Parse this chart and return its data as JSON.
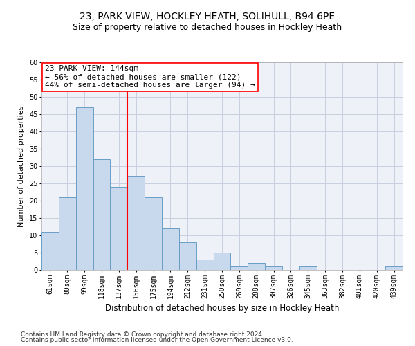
{
  "title1": "23, PARK VIEW, HOCKLEY HEATH, SOLIHULL, B94 6PE",
  "title2": "Size of property relative to detached houses in Hockley Heath",
  "xlabel": "Distribution of detached houses by size in Hockley Heath",
  "ylabel": "Number of detached properties",
  "categories": [
    "61sqm",
    "80sqm",
    "99sqm",
    "118sqm",
    "137sqm",
    "156sqm",
    "175sqm",
    "194sqm",
    "212sqm",
    "231sqm",
    "250sqm",
    "269sqm",
    "288sqm",
    "307sqm",
    "326sqm",
    "345sqm",
    "363sqm",
    "382sqm",
    "401sqm",
    "420sqm",
    "439sqm"
  ],
  "values": [
    11,
    21,
    47,
    32,
    24,
    27,
    21,
    12,
    8,
    3,
    5,
    1,
    2,
    1,
    0,
    1,
    0,
    0,
    0,
    0,
    1
  ],
  "bar_color": "#c8d9ee",
  "bar_edge_color": "#6a9ec5",
  "vline_x": 4.5,
  "vline_color": "red",
  "annotation_text": "23 PARK VIEW: 144sqm\n← 56% of detached houses are smaller (122)\n44% of semi-detached houses are larger (94) →",
  "annotation_box_color": "white",
  "annotation_box_edge_color": "red",
  "ylim": [
    0,
    60
  ],
  "yticks": [
    0,
    5,
    10,
    15,
    20,
    25,
    30,
    35,
    40,
    45,
    50,
    55,
    60
  ],
  "footer1": "Contains HM Land Registry data © Crown copyright and database right 2024.",
  "footer2": "Contains public sector information licensed under the Open Government Licence v3.0.",
  "background_color": "#eef2f8",
  "grid_color": "#c8cfe0",
  "title1_fontsize": 10,
  "title2_fontsize": 9,
  "xlabel_fontsize": 8.5,
  "ylabel_fontsize": 8,
  "tick_fontsize": 7,
  "annotation_fontsize": 8,
  "footer_fontsize": 6.5
}
